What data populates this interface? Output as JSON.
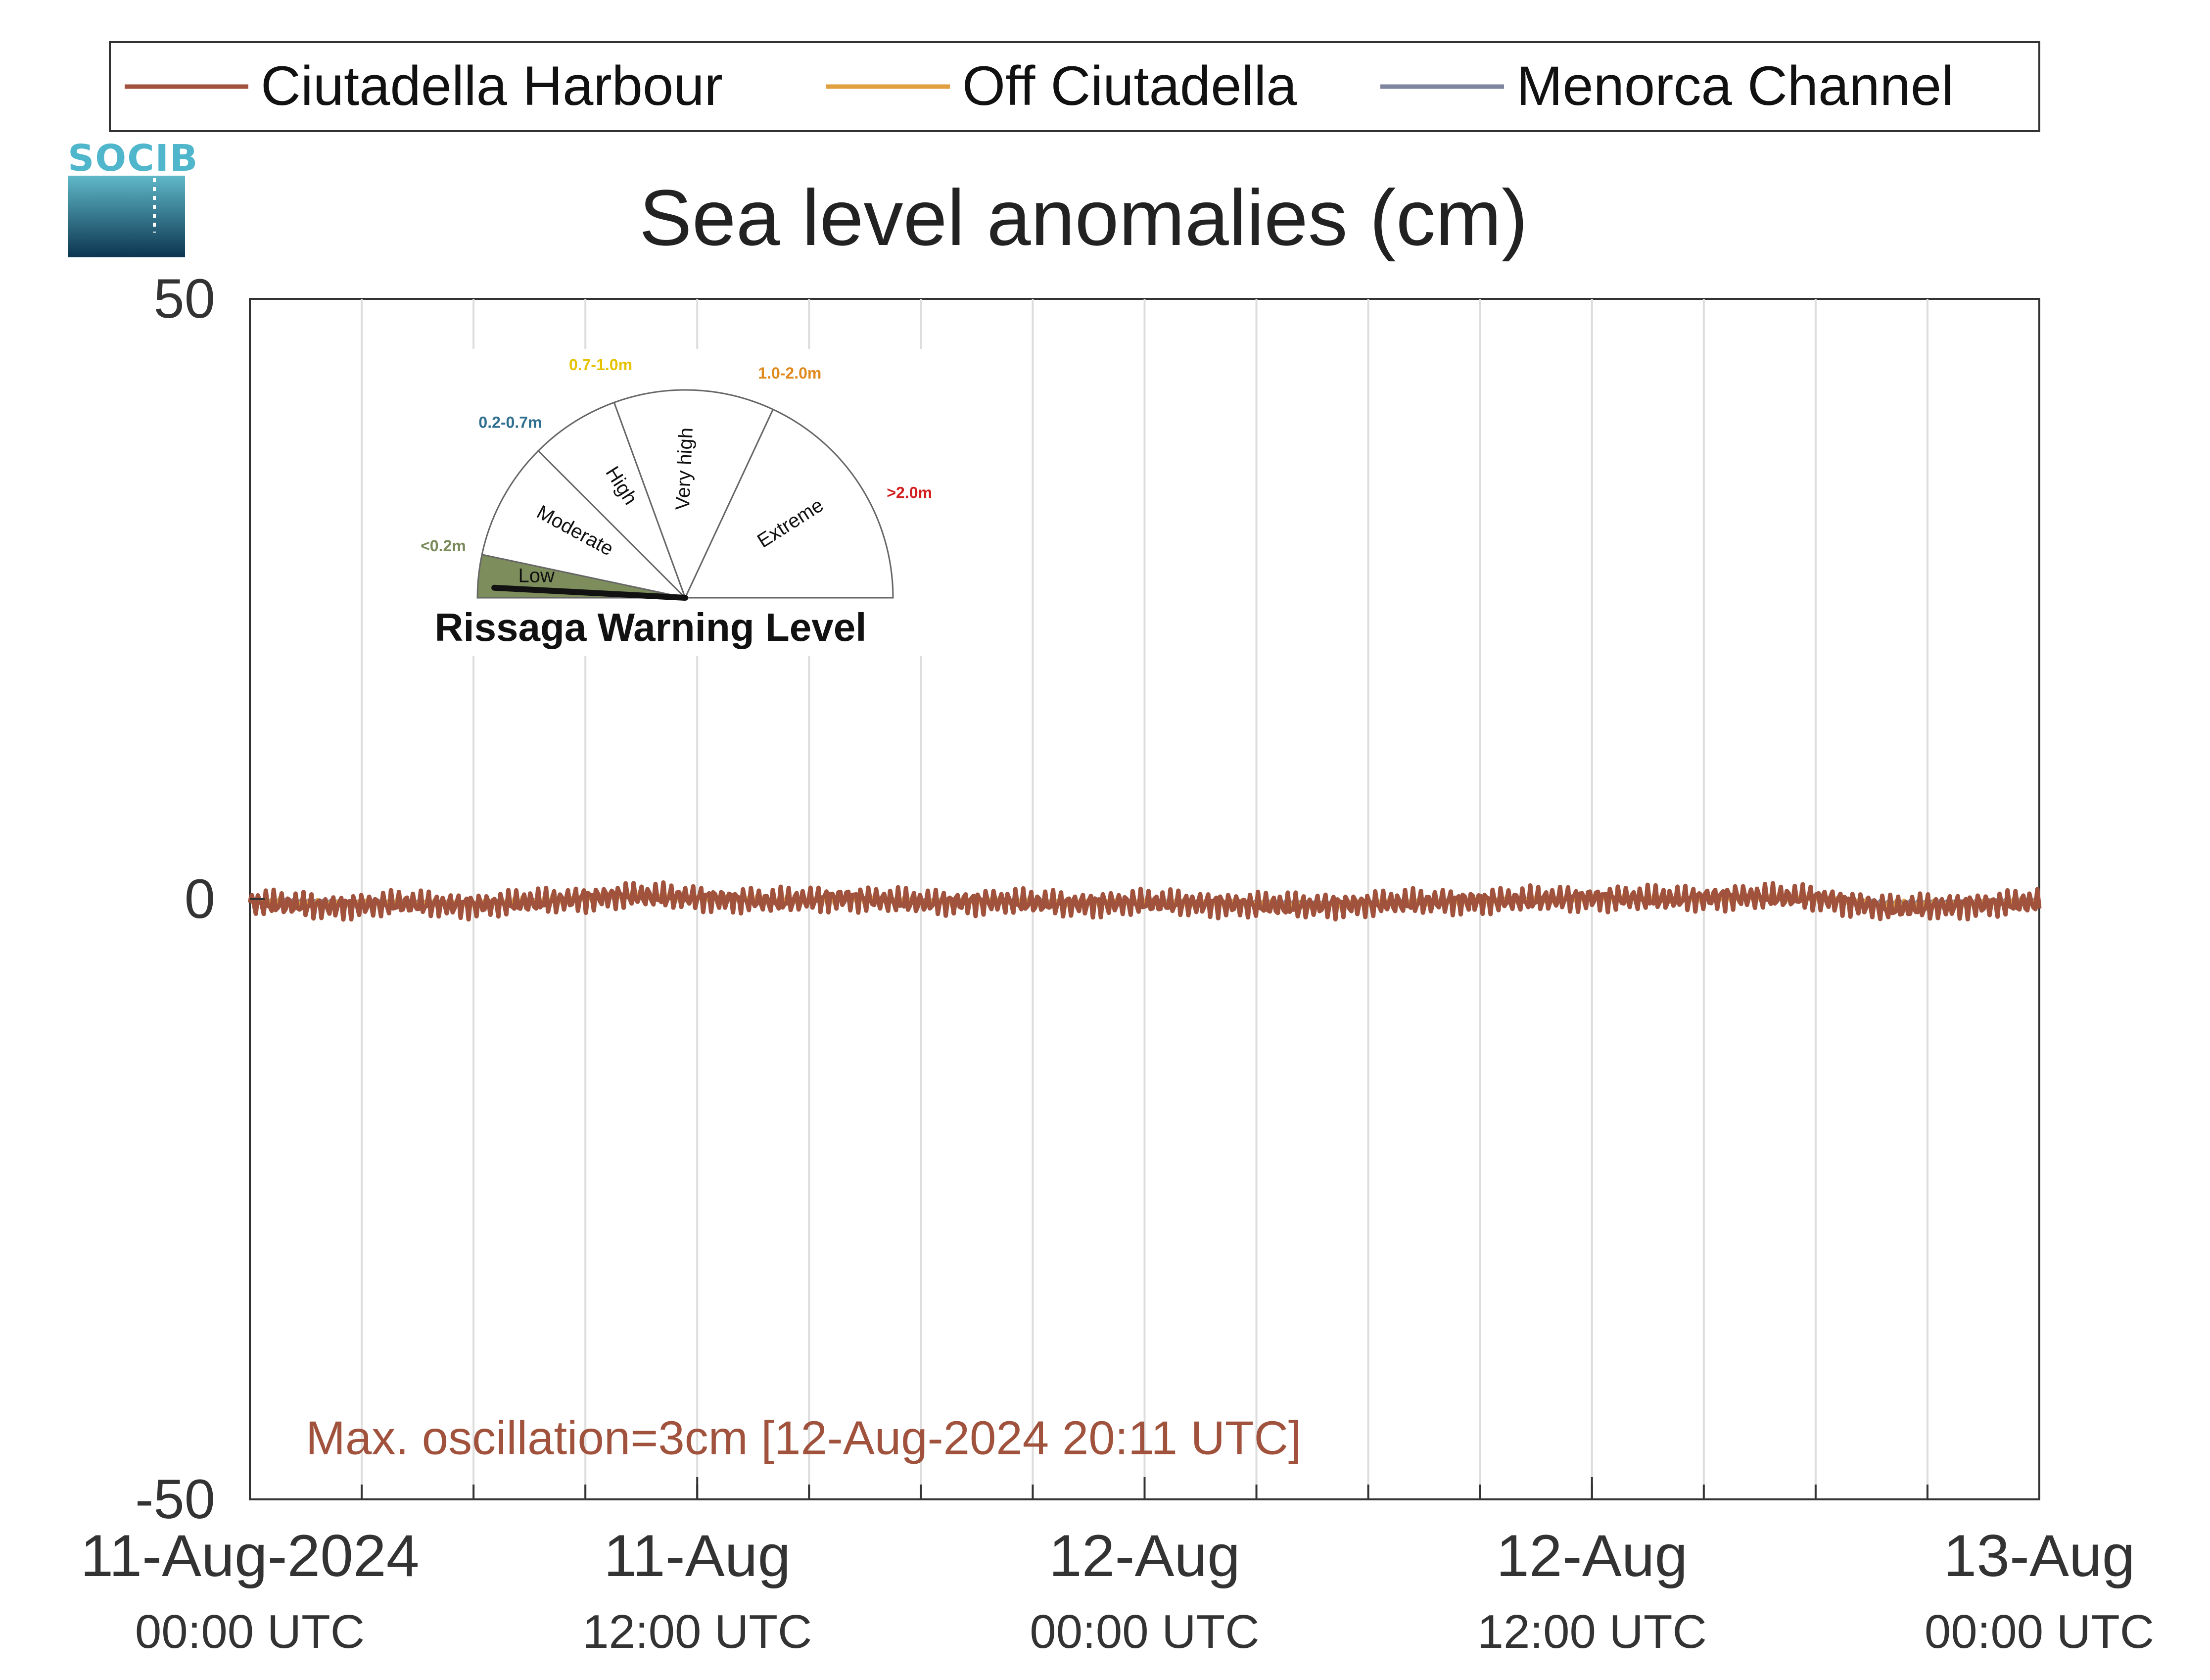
{
  "logo": {
    "text": "SOCIB"
  },
  "chart_data": {
    "type": "line",
    "title": "Sea level anomalies (cm)",
    "xlabel": "",
    "ylabel": "",
    "x_range": [
      "2024-08-11T00:00",
      "2024-08-13T00:00"
    ],
    "ylim": [
      -50,
      50
    ],
    "yticks": [
      50,
      0,
      -50
    ],
    "yticklabels": [
      "50",
      "0",
      "-50"
    ],
    "xticks": [
      {
        "x": "2024-08-11T00:00",
        "line1": "11-Aug-2024",
        "line2": "00:00 UTC"
      },
      {
        "x": "2024-08-11T12:00",
        "line1": "11-Aug",
        "line2": "12:00 UTC"
      },
      {
        "x": "2024-08-12T00:00",
        "line1": "12-Aug",
        "line2": "00:00 UTC"
      },
      {
        "x": "2024-08-12T12:00",
        "line1": "12-Aug",
        "line2": "12:00 UTC"
      },
      {
        "x": "2024-08-13T00:00",
        "line1": "13-Aug",
        "line2": "00:00 UTC"
      }
    ],
    "grid": "vertical, every 3 hours",
    "legend_position": "top",
    "series": [
      {
        "name": "Ciutadella Harbour",
        "color": "#a0523d",
        "x": [
          "2024-08-11T00:00",
          "2024-08-11T02:00",
          "2024-08-11T04:00",
          "2024-08-11T06:00",
          "2024-08-11T08:00",
          "2024-08-11T10:00",
          "2024-08-11T12:00",
          "2024-08-11T14:00",
          "2024-08-11T16:00",
          "2024-08-11T18:00",
          "2024-08-11T20:00",
          "2024-08-11T22:00",
          "2024-08-12T00:00",
          "2024-08-12T02:00",
          "2024-08-12T04:00",
          "2024-08-12T06:00",
          "2024-08-12T08:00",
          "2024-08-12T10:00",
          "2024-08-12T12:00",
          "2024-08-12T14:00",
          "2024-08-12T16:00",
          "2024-08-12T18:00",
          "2024-08-12T20:00",
          "2024-08-12T22:00",
          "2024-08-13T00:00"
        ],
        "values": [
          -0.3,
          -0.6,
          -0.4,
          -0.5,
          -0.2,
          0.3,
          0.1,
          -0.2,
          0.1,
          -0.3,
          -0.2,
          -0.4,
          -0.3,
          -0.4,
          -0.6,
          -0.4,
          -0.2,
          -0.1,
          0.1,
          0.0,
          0.2,
          0.1,
          -0.8,
          -0.5,
          -0.3
        ],
        "oscillation_amplitude": 1.2
      },
      {
        "name": "Off Ciutadella",
        "color": "#e0a040",
        "x": [
          "2024-08-11T00:00",
          "2024-08-11T02:00",
          "2024-08-11T04:00",
          "2024-08-11T06:00",
          "2024-08-11T08:00",
          "2024-08-11T10:00",
          "2024-08-11T12:00",
          "2024-08-11T14:00",
          "2024-08-11T16:00",
          "2024-08-11T18:00",
          "2024-08-11T20:00",
          "2024-08-11T22:00",
          "2024-08-12T00:00",
          "2024-08-12T02:00",
          "2024-08-12T04:00",
          "2024-08-12T06:00",
          "2024-08-12T08:00",
          "2024-08-12T10:00",
          "2024-08-12T12:00",
          "2024-08-12T14:00",
          "2024-08-12T16:00",
          "2024-08-12T18:00",
          "2024-08-12T20:00",
          "2024-08-12T22:00",
          "2024-08-13T00:00"
        ],
        "values": [
          -0.2,
          -0.4,
          -0.3,
          -0.4,
          -0.1,
          0.3,
          0.1,
          -0.1,
          0.0,
          -0.2,
          -0.2,
          -0.3,
          -0.3,
          -0.3,
          -0.5,
          -0.4,
          -0.2,
          -0.1,
          0.1,
          0.0,
          0.1,
          0.1,
          -0.5,
          -0.4,
          -0.2
        ],
        "oscillation_amplitude": 0.4
      },
      {
        "name": "Menorca Channel",
        "color": "#7f859f",
        "x": [
          "2024-08-11T00:00",
          "2024-08-11T02:00",
          "2024-08-11T04:00",
          "2024-08-11T06:00",
          "2024-08-11T08:00",
          "2024-08-11T10:00",
          "2024-08-11T12:00",
          "2024-08-11T14:00",
          "2024-08-11T16:00",
          "2024-08-11T18:00",
          "2024-08-11T20:00",
          "2024-08-11T22:00",
          "2024-08-12T00:00",
          "2024-08-12T02:00",
          "2024-08-12T04:00",
          "2024-08-12T06:00",
          "2024-08-12T08:00",
          "2024-08-12T10:00",
          "2024-08-12T12:00",
          "2024-08-12T14:00",
          "2024-08-12T16:00",
          "2024-08-12T18:00",
          "2024-08-12T20:00",
          "2024-08-12T22:00",
          "2024-08-13T00:00"
        ],
        "values": [
          -0.1,
          -0.2,
          -0.2,
          -0.3,
          -0.1,
          0.2,
          0.1,
          -0.1,
          0.0,
          -0.1,
          -0.1,
          -0.2,
          -0.2,
          -0.2,
          -0.3,
          -0.3,
          -0.1,
          0.0,
          0.1,
          0.0,
          0.1,
          0.1,
          -0.3,
          -0.2,
          -0.1
        ],
        "oscillation_amplitude": 0.15
      }
    ],
    "annotation": {
      "text": "Max. oscillation=3cm [12-Aug-2024 20:11 UTC]",
      "color": "#a0523d",
      "x": "2024-08-11T01:30",
      "y": -45
    }
  },
  "warning_gauge": {
    "title": "Rissaga Warning Level",
    "current_level": "Low",
    "levels": [
      {
        "name": "Low",
        "range": "<0.2m",
        "color": "#7a8a5a",
        "fill": "#7d8d5c"
      },
      {
        "name": "Moderate",
        "range": "0.2-0.7m",
        "color": "#2e6e8e",
        "fill": "#ffffff"
      },
      {
        "name": "High",
        "range": "0.7-1.0m",
        "color": "#e6c200",
        "fill": "#ffffff"
      },
      {
        "name": "Very high",
        "range": "1.0-2.0m",
        "color": "#e08a1e",
        "fill": "#ffffff"
      },
      {
        "name": "Extreme",
        "range": ">2.0m",
        "color": "#d22020",
        "fill": "#ffffff"
      }
    ]
  }
}
